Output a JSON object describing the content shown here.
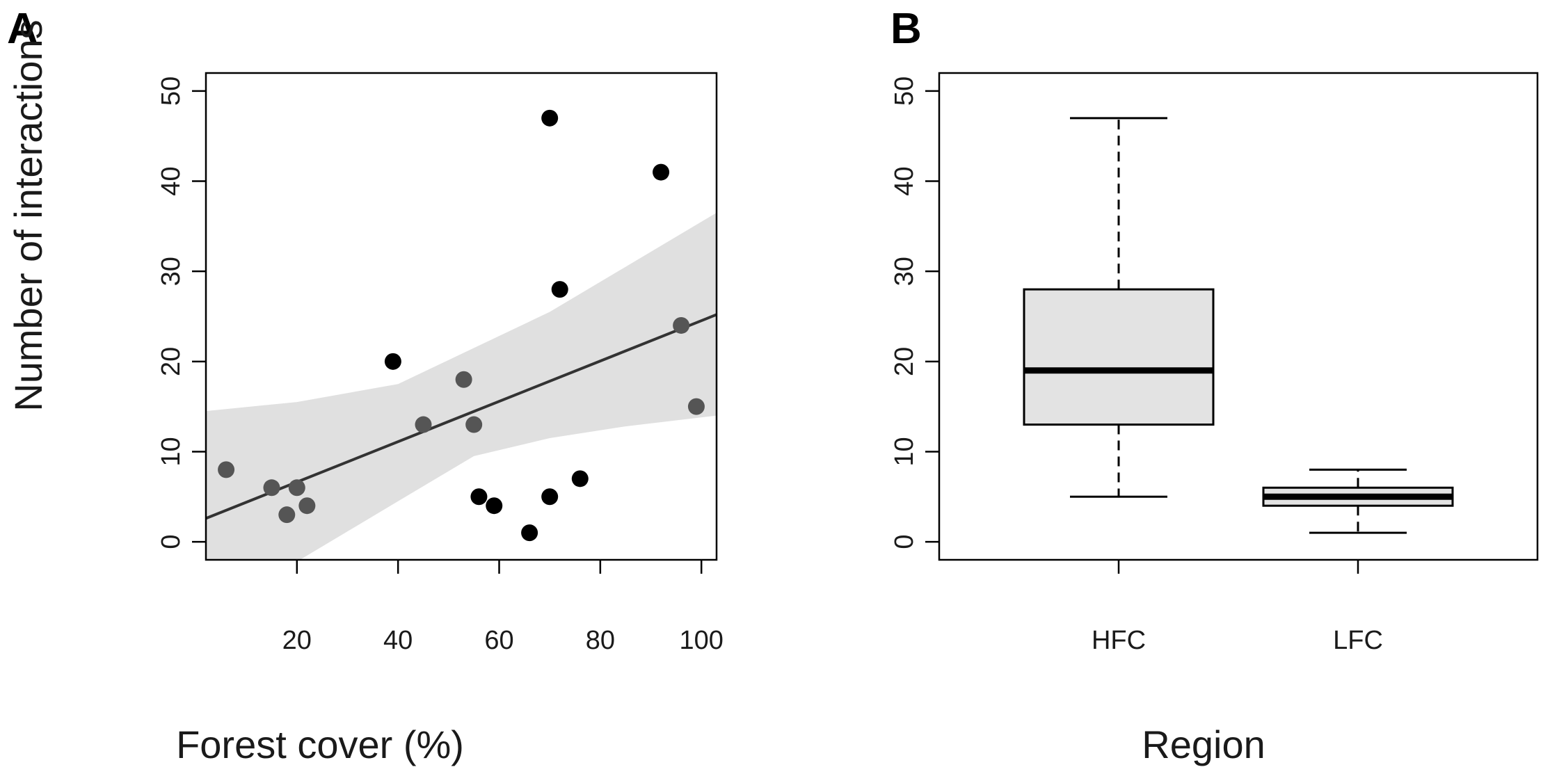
{
  "colors": {
    "band": "#e0e0e0",
    "line": "#333333",
    "point_dark": "#000000",
    "point_gray": "#555555",
    "box_fill": "#e3e3e3",
    "axis": "#000000"
  },
  "chart_data": [
    {
      "panel": "A",
      "type": "scatter",
      "xlabel": "Forest cover (%)",
      "ylabel": "Number of interactions",
      "xlim": [
        2,
        103
      ],
      "ylim": [
        -2,
        52
      ],
      "x_ticks": [
        20,
        40,
        60,
        80,
        100
      ],
      "y_ticks": [
        0,
        10,
        20,
        30,
        40,
        50
      ],
      "x_tick_labels": [
        "20",
        "40",
        "60",
        "80",
        "100"
      ],
      "y_tick_labels": [
        "0",
        "10",
        "20",
        "30",
        "40",
        "50"
      ],
      "grid": false,
      "points": [
        {
          "x": 6,
          "y": 8,
          "group": "LFC"
        },
        {
          "x": 15,
          "y": 6,
          "group": "LFC"
        },
        {
          "x": 18,
          "y": 3,
          "group": "LFC"
        },
        {
          "x": 20,
          "y": 6,
          "group": "LFC"
        },
        {
          "x": 22,
          "y": 4,
          "group": "LFC"
        },
        {
          "x": 39,
          "y": 20,
          "group": "HFC"
        },
        {
          "x": 45,
          "y": 13,
          "group": "LFC"
        },
        {
          "x": 53,
          "y": 18,
          "group": "LFC"
        },
        {
          "x": 55,
          "y": 13,
          "group": "LFC"
        },
        {
          "x": 56,
          "y": 5,
          "group": "HFC"
        },
        {
          "x": 59,
          "y": 4,
          "group": "HFC"
        },
        {
          "x": 66,
          "y": 1,
          "group": "HFC"
        },
        {
          "x": 70,
          "y": 47,
          "group": "HFC"
        },
        {
          "x": 70,
          "y": 5,
          "group": "HFC"
        },
        {
          "x": 72,
          "y": 28,
          "group": "HFC"
        },
        {
          "x": 76,
          "y": 7,
          "group": "HFC"
        },
        {
          "x": 92,
          "y": 41,
          "group": "HFC"
        },
        {
          "x": 96,
          "y": 24,
          "group": "LFC"
        },
        {
          "x": 99,
          "y": 15,
          "group": "LFC"
        }
      ],
      "regression": {
        "x": [
          2,
          103
        ],
        "y": [
          2.6,
          25.2
        ]
      },
      "confidence_band": {
        "x": [
          2,
          20,
          40,
          55,
          70,
          85,
          103
        ],
        "lower": [
          -3.5,
          -2.2,
          4.5,
          9.5,
          11.5,
          12.8,
          14.0
        ],
        "upper": [
          14.5,
          15.5,
          17.5,
          21.5,
          25.5,
          30.5,
          36.5
        ]
      }
    },
    {
      "panel": "B",
      "type": "box",
      "xlabel": "Region",
      "ylabel": "",
      "ylim": [
        -2,
        52
      ],
      "y_ticks": [
        0,
        10,
        20,
        30,
        40,
        50
      ],
      "y_tick_labels": [
        "0",
        "10",
        "20",
        "30",
        "40",
        "50"
      ],
      "categories": [
        "HFC",
        "LFC"
      ],
      "boxes": [
        {
          "name": "HFC",
          "min": 5,
          "q1": 13,
          "median": 19,
          "q3": 28,
          "max": 47
        },
        {
          "name": "LFC",
          "min": 1,
          "q1": 4,
          "median": 5,
          "q3": 6,
          "max": 8
        }
      ]
    }
  ]
}
